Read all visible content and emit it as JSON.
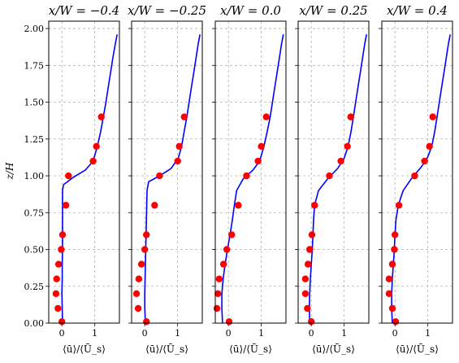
{
  "chart_data": {
    "type": "scatter",
    "ylabel": "z/H",
    "xlabel": "⟨ū⟩/⟨Ū_s⟩",
    "ylim": [
      0,
      2.05
    ],
    "xlim": [
      -0.4,
      1.75
    ],
    "yticks": [
      "0.00",
      "0.25",
      "0.50",
      "0.75",
      "1.00",
      "1.25",
      "1.50",
      "1.75",
      "2.00"
    ],
    "ytick_values": [
      0,
      0.25,
      0.5,
      0.75,
      1.0,
      1.25,
      1.5,
      1.75,
      2.0
    ],
    "xticks": [
      "0",
      "1"
    ],
    "xtick_values": [
      0,
      1
    ],
    "grid": true,
    "colors": {
      "points": "#ff0000",
      "line": "#0000ff",
      "grid": "#b0b0b0"
    },
    "panels": [
      {
        "title": "x/W = −0.4",
        "points": [
          [
            0.0,
            0.01
          ],
          [
            -0.12,
            0.1
          ],
          [
            -0.18,
            0.2
          ],
          [
            -0.16,
            0.3
          ],
          [
            -0.1,
            0.4
          ],
          [
            -0.02,
            0.5
          ],
          [
            0.02,
            0.6
          ],
          [
            0.12,
            0.8
          ],
          [
            0.2,
            1.0
          ],
          [
            0.95,
            1.1
          ],
          [
            1.05,
            1.2
          ],
          [
            1.2,
            1.4
          ]
        ],
        "line": [
          [
            0.02,
            0
          ],
          [
            0.01,
            0.1
          ],
          [
            0.0,
            0.2
          ],
          [
            0.01,
            0.3
          ],
          [
            0.01,
            0.4
          ],
          [
            0.02,
            0.5
          ],
          [
            0.02,
            0.6
          ],
          [
            0.02,
            0.7
          ],
          [
            0.02,
            0.8
          ],
          [
            0.02,
            0.9
          ],
          [
            0.05,
            0.94
          ],
          [
            0.35,
            0.99
          ],
          [
            0.72,
            1.04
          ],
          [
            0.95,
            1.1
          ],
          [
            1.08,
            1.2
          ],
          [
            1.18,
            1.3
          ],
          [
            1.26,
            1.4
          ],
          [
            1.34,
            1.5
          ],
          [
            1.41,
            1.6
          ],
          [
            1.48,
            1.7
          ],
          [
            1.55,
            1.8
          ],
          [
            1.63,
            1.9
          ],
          [
            1.68,
            1.96
          ]
        ]
      },
      {
        "title": "x/W = −0.25",
        "points": [
          [
            0.05,
            0.01
          ],
          [
            -0.2,
            0.1
          ],
          [
            -0.25,
            0.2
          ],
          [
            -0.18,
            0.3
          ],
          [
            -0.1,
            0.4
          ],
          [
            0.0,
            0.5
          ],
          [
            0.05,
            0.6
          ],
          [
            0.3,
            0.8
          ],
          [
            0.45,
            1.0
          ],
          [
            1.0,
            1.1
          ],
          [
            1.05,
            1.2
          ],
          [
            1.2,
            1.4
          ]
        ],
        "line": [
          [
            0.02,
            0
          ],
          [
            0.0,
            0.1
          ],
          [
            0.0,
            0.2
          ],
          [
            0.01,
            0.3
          ],
          [
            0.02,
            0.4
          ],
          [
            0.03,
            0.5
          ],
          [
            0.04,
            0.6
          ],
          [
            0.05,
            0.7
          ],
          [
            0.06,
            0.8
          ],
          [
            0.07,
            0.9
          ],
          [
            0.12,
            0.96
          ],
          [
            0.45,
            1.0
          ],
          [
            0.8,
            1.05
          ],
          [
            1.02,
            1.12
          ],
          [
            1.12,
            1.2
          ],
          [
            1.2,
            1.3
          ],
          [
            1.28,
            1.4
          ],
          [
            1.35,
            1.5
          ],
          [
            1.42,
            1.6
          ],
          [
            1.49,
            1.7
          ],
          [
            1.56,
            1.8
          ],
          [
            1.63,
            1.9
          ],
          [
            1.68,
            1.96
          ]
        ]
      },
      {
        "title": "x/W = 0.0",
        "points": [
          [
            0.02,
            0.01
          ],
          [
            -0.35,
            0.1
          ],
          [
            -0.32,
            0.2
          ],
          [
            -0.28,
            0.3
          ],
          [
            -0.15,
            0.4
          ],
          [
            -0.05,
            0.5
          ],
          [
            0.1,
            0.6
          ],
          [
            0.3,
            0.8
          ],
          [
            0.55,
            1.0
          ],
          [
            0.9,
            1.1
          ],
          [
            1.0,
            1.2
          ],
          [
            1.15,
            1.4
          ]
        ],
        "line": [
          [
            -0.18,
            0
          ],
          [
            -0.2,
            0.1
          ],
          [
            -0.2,
            0.2
          ],
          [
            -0.16,
            0.3
          ],
          [
            -0.1,
            0.4
          ],
          [
            -0.03,
            0.5
          ],
          [
            0.05,
            0.6
          ],
          [
            0.12,
            0.7
          ],
          [
            0.18,
            0.8
          ],
          [
            0.25,
            0.9
          ],
          [
            0.45,
            0.98
          ],
          [
            0.75,
            1.04
          ],
          [
            0.95,
            1.1
          ],
          [
            1.08,
            1.2
          ],
          [
            1.18,
            1.3
          ],
          [
            1.27,
            1.4
          ],
          [
            1.34,
            1.5
          ],
          [
            1.41,
            1.6
          ],
          [
            1.48,
            1.7
          ],
          [
            1.55,
            1.8
          ],
          [
            1.62,
            1.9
          ],
          [
            1.67,
            1.96
          ]
        ]
      },
      {
        "title": "x/W = 0.25",
        "points": [
          [
            0.0,
            0.01
          ],
          [
            -0.12,
            0.1
          ],
          [
            -0.18,
            0.2
          ],
          [
            -0.18,
            0.3
          ],
          [
            -0.1,
            0.4
          ],
          [
            -0.05,
            0.5
          ],
          [
            0.02,
            0.6
          ],
          [
            0.1,
            0.8
          ],
          [
            0.55,
            1.0
          ],
          [
            0.9,
            1.1
          ],
          [
            1.1,
            1.2
          ],
          [
            1.2,
            1.4
          ]
        ],
        "line": [
          [
            -0.05,
            0
          ],
          [
            -0.06,
            0.1
          ],
          [
            -0.05,
            0.2
          ],
          [
            -0.03,
            0.3
          ],
          [
            0.0,
            0.4
          ],
          [
            0.03,
            0.5
          ],
          [
            0.05,
            0.6
          ],
          [
            0.07,
            0.7
          ],
          [
            0.1,
            0.8
          ],
          [
            0.22,
            0.9
          ],
          [
            0.5,
            0.98
          ],
          [
            0.8,
            1.05
          ],
          [
            1.0,
            1.12
          ],
          [
            1.12,
            1.2
          ],
          [
            1.21,
            1.3
          ],
          [
            1.28,
            1.4
          ],
          [
            1.35,
            1.5
          ],
          [
            1.42,
            1.6
          ],
          [
            1.49,
            1.7
          ],
          [
            1.56,
            1.8
          ],
          [
            1.63,
            1.9
          ],
          [
            1.68,
            1.96
          ]
        ]
      },
      {
        "title": "x/W = 0.4",
        "points": [
          [
            0.02,
            0.01
          ],
          [
            -0.08,
            0.1
          ],
          [
            -0.18,
            0.2
          ],
          [
            -0.18,
            0.3
          ],
          [
            -0.08,
            0.4
          ],
          [
            -0.02,
            0.5
          ],
          [
            0.0,
            0.6
          ],
          [
            0.12,
            0.8
          ],
          [
            0.6,
            1.0
          ],
          [
            0.9,
            1.1
          ],
          [
            1.05,
            1.2
          ],
          [
            1.15,
            1.4
          ]
        ],
        "line": [
          [
            -0.08,
            0
          ],
          [
            -0.1,
            0.1
          ],
          [
            -0.1,
            0.2
          ],
          [
            -0.08,
            0.3
          ],
          [
            -0.05,
            0.4
          ],
          [
            -0.02,
            0.5
          ],
          [
            0.0,
            0.6
          ],
          [
            0.03,
            0.7
          ],
          [
            0.1,
            0.8
          ],
          [
            0.25,
            0.9
          ],
          [
            0.5,
            0.98
          ],
          [
            0.8,
            1.06
          ],
          [
            1.0,
            1.13
          ],
          [
            1.12,
            1.2
          ],
          [
            1.21,
            1.3
          ],
          [
            1.28,
            1.4
          ],
          [
            1.35,
            1.5
          ],
          [
            1.42,
            1.6
          ],
          [
            1.49,
            1.7
          ],
          [
            1.56,
            1.8
          ],
          [
            1.63,
            1.9
          ],
          [
            1.68,
            1.96
          ]
        ]
      }
    ]
  }
}
